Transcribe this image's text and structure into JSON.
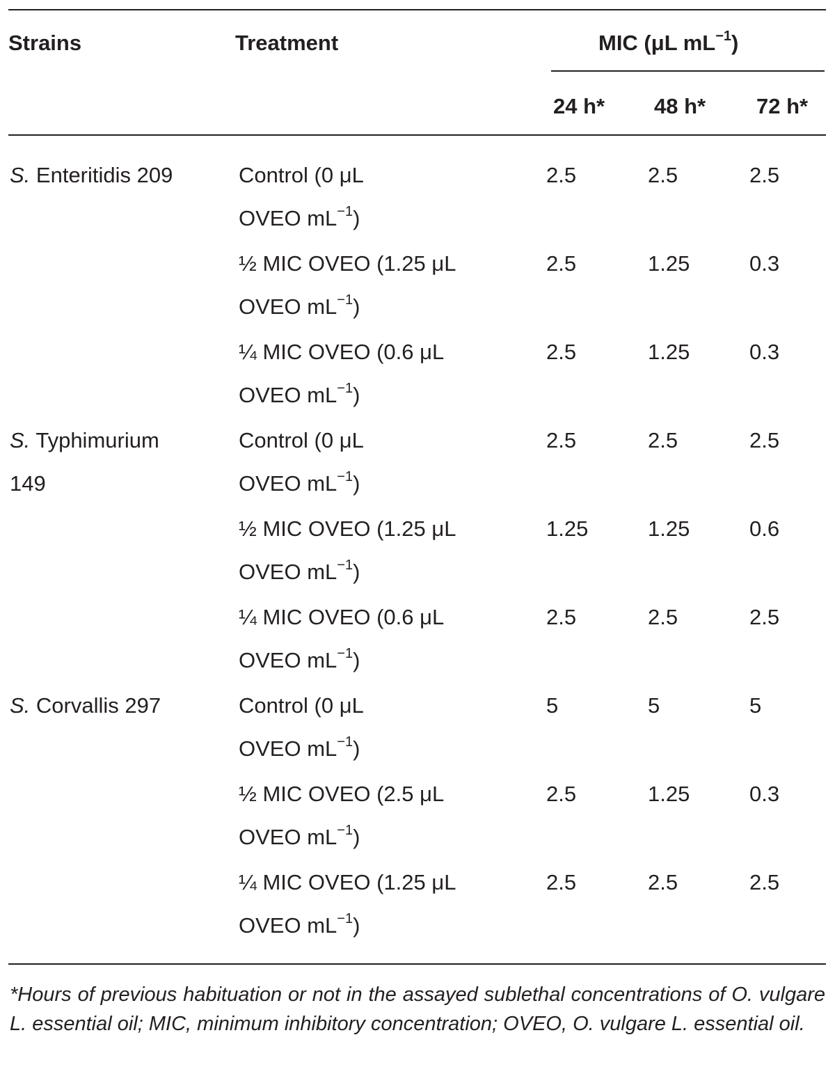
{
  "header": {
    "strains": "Strains",
    "treatment": "Treatment",
    "mic": "MIC (μL mL",
    "mic_exp": "−1",
    "mic_close": ")",
    "timepoints": [
      "24 h*",
      "48 h*",
      "72 h*"
    ]
  },
  "rows": [
    {
      "strain_genus": "S.",
      "strain_rest": " Enteritidis 209",
      "strain_rest_line2": "",
      "treatment_line1": "Control (0 μL",
      "treatment_line2": "OVEO mL",
      "exp": "−1",
      "close": ")",
      "values": [
        "2.5",
        "2.5",
        "2.5"
      ]
    },
    {
      "strain_genus": "",
      "strain_rest": "",
      "strain_rest_line2": "",
      "treatment_line1": "½ MIC OVEO (1.25 μL",
      "treatment_line2": "OVEO mL",
      "exp": "−1",
      "close": ")",
      "values": [
        "2.5",
        "1.25",
        "0.3"
      ]
    },
    {
      "strain_genus": "",
      "strain_rest": "",
      "strain_rest_line2": "",
      "treatment_line1": "¼ MIC OVEO (0.6 μL",
      "treatment_line2": "OVEO mL",
      "exp": "−1",
      "close": ")",
      "values": [
        "2.5",
        "1.25",
        "0.3"
      ]
    },
    {
      "strain_genus": "S.",
      "strain_rest": " Typhimurium",
      "strain_rest_line2": "149",
      "treatment_line1": "Control (0 μL",
      "treatment_line2": "OVEO mL",
      "exp": "−1",
      "close": ")",
      "values": [
        "2.5",
        "2.5",
        "2.5"
      ]
    },
    {
      "strain_genus": "",
      "strain_rest": "",
      "strain_rest_line2": "",
      "treatment_line1": "½ MIC OVEO (1.25 μL",
      "treatment_line2": "OVEO mL",
      "exp": "−1",
      "close": ")",
      "values": [
        "1.25",
        "1.25",
        "0.6"
      ]
    },
    {
      "strain_genus": "",
      "strain_rest": "",
      "strain_rest_line2": "",
      "treatment_line1": "¼ MIC OVEO (0.6 μL",
      "treatment_line2": "OVEO mL",
      "exp": "−1",
      "close": ")",
      "values": [
        "2.5",
        "2.5",
        "2.5"
      ]
    },
    {
      "strain_genus": "S.",
      "strain_rest": " Corvallis 297",
      "strain_rest_line2": "",
      "treatment_line1": "Control (0 μL",
      "treatment_line2": "OVEO mL",
      "exp": "−1",
      "close": ")",
      "values": [
        "5",
        "5",
        "5"
      ]
    },
    {
      "strain_genus": "",
      "strain_rest": "",
      "strain_rest_line2": "",
      "treatment_line1": "½ MIC OVEO (2.5 μL",
      "treatment_line2": "OVEO mL",
      "exp": "−1",
      "close": ")",
      "values": [
        "2.5",
        "1.25",
        "0.3"
      ]
    },
    {
      "strain_genus": "",
      "strain_rest": "",
      "strain_rest_line2": "",
      "treatment_line1": "¼ MIC OVEO (1.25 μL",
      "treatment_line2": "OVEO mL",
      "exp": "−1",
      "close": ")",
      "values": [
        "2.5",
        "2.5",
        "2.5"
      ]
    }
  ],
  "footnote": "*Hours of previous habituation or not in the assayed sublethal concentrations of O. vulgare L. essential oil; MIC, minimum inhibitory concentration; OVEO, O. vulgare L. essential oil."
}
